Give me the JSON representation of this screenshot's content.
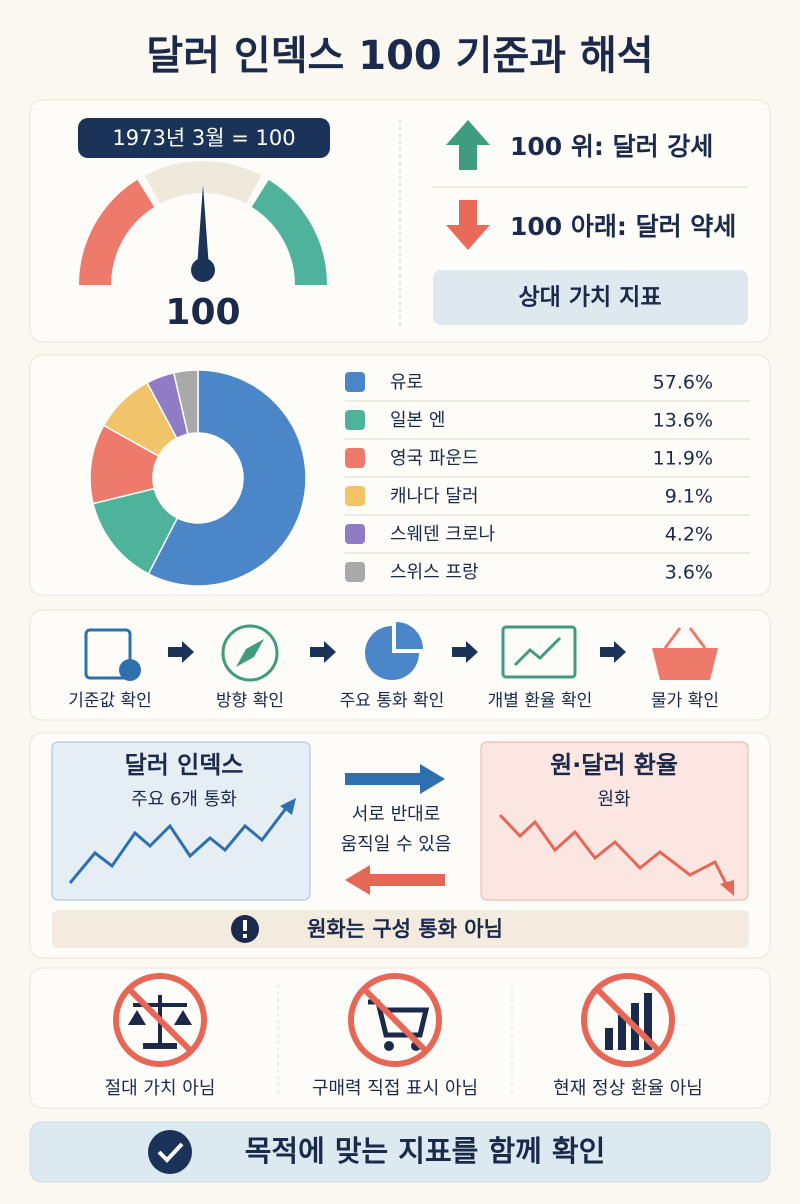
{
  "title": "달러 인덱스 100 기준과 해석",
  "gauge": {
    "badge": "1973년 3월 = 100",
    "value": 100,
    "up": "100 위: 달러 강세",
    "down": "100 아래: 달러 약세",
    "note": "상대 가치 지표"
  },
  "chart_data": {
    "type": "pie",
    "categories": [
      "유로",
      "일본 엔",
      "영국 파운드",
      "캐나다 달러",
      "스웨덴 크로나",
      "스위스 프랑"
    ],
    "values": [
      57.6,
      13.6,
      11.9,
      9.1,
      4.2,
      3.6
    ],
    "value_labels": [
      "57.6%",
      "13.6%",
      "11.9%",
      "9.1%",
      "4.2%",
      "3.6%"
    ],
    "colors": [
      "#4a86c8",
      "#4fb39b",
      "#ee7a6b",
      "#f2c46a",
      "#8f7cc4",
      "#a9a9a9"
    ]
  },
  "steps": [
    "기준값 확인",
    "방향 확인",
    "주요 통화 확인",
    "개별 환율 확인",
    "물가 확인"
  ],
  "compare": {
    "left_title": "달러 인덱스",
    "left_sub": "주요 6개 통화",
    "middle": [
      "서로 반대로",
      "움직일 수 있음"
    ],
    "right_title": "원·달러 환율",
    "right_sub": "원화",
    "note": "원화는 구성 통화 아님"
  },
  "not": [
    "절대 가치 아님",
    "구매력 직접 표시 아님",
    "현재 정상 환율 아님"
  ],
  "footer": "목적에 맞는 지표를 함께 확인"
}
